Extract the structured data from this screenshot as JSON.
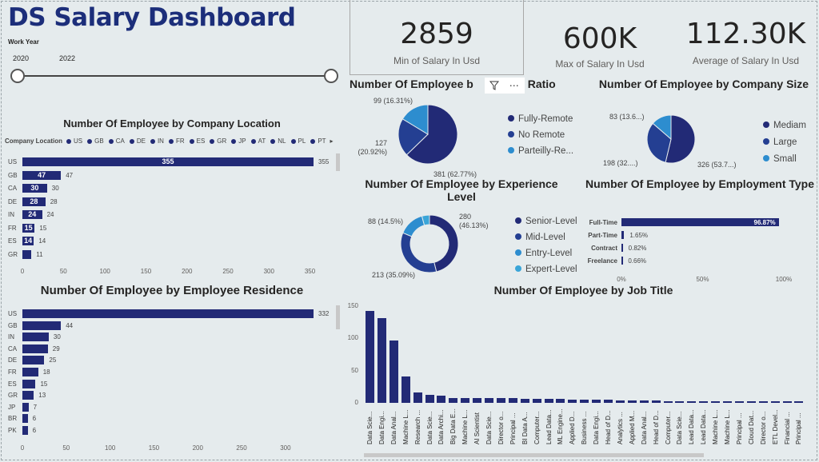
{
  "title": "DS Salary Dashboard",
  "slicer": {
    "label": "Work Year",
    "start": "2020",
    "end": "2022"
  },
  "cards": [
    {
      "value": "2859",
      "label": "Min of Salary In Usd"
    },
    {
      "value": "600K",
      "label": "Max of Salary In Usd"
    },
    {
      "value": "112.30K",
      "label": "Average of Salary In Usd"
    }
  ],
  "colors": {
    "dark": "#222a76",
    "mid": "#243f92",
    "light": "#2d8dcf",
    "lighter": "#3aa5d8"
  },
  "toolbar_icons": [
    "filter-icon",
    "more-options-icon"
  ],
  "location_chart": {
    "title": "Number Of Employee by Company Location",
    "legend_label": "Company Location",
    "legend_items": [
      "US",
      "GB",
      "CA",
      "DE",
      "IN",
      "FR",
      "ES",
      "GR",
      "JP",
      "AT",
      "NL",
      "PL",
      "PT"
    ],
    "legend_more": "▸",
    "categories": [
      "US",
      "GB",
      "CA",
      "DE",
      "IN",
      "FR",
      "ES",
      "GR"
    ],
    "values": [
      355,
      47,
      30,
      28,
      24,
      15,
      14,
      11
    ],
    "inside_labels": [
      "355",
      "47",
      "30",
      "28",
      "24",
      "15",
      "14",
      ""
    ],
    "outside_labels": [
      "355",
      "47",
      "30",
      "28",
      "24",
      "15",
      "14",
      "11"
    ],
    "ticks": [
      "0",
      "50",
      "100",
      "150",
      "200",
      "250",
      "300",
      "350"
    ],
    "tick_values": [
      0,
      50,
      100,
      150,
      200,
      250,
      300,
      350
    ],
    "xmax": 355
  },
  "residence_chart": {
    "title": "Number Of Employee by Employee Residence",
    "categories": [
      "US",
      "GB",
      "IN",
      "CA",
      "DE",
      "FR",
      "ES",
      "GR",
      "JP",
      "BR",
      "PK"
    ],
    "values": [
      332,
      44,
      30,
      29,
      25,
      18,
      15,
      13,
      7,
      6,
      6
    ],
    "labels": [
      "332",
      "44",
      "30",
      "29",
      "25",
      "18",
      "15",
      "13",
      "7",
      "6",
      "6"
    ],
    "ticks": [
      "0",
      "50",
      "100",
      "150",
      "200",
      "250",
      "300"
    ],
    "tick_values": [
      0,
      50,
      100,
      150,
      200,
      250,
      300
    ],
    "xmax": 332
  },
  "remote_chart": {
    "title_left": "Number Of Employee b",
    "title_right": "ote Ratio",
    "slices": [
      {
        "name": "Fully-Remote",
        "value": 381,
        "label": "381 (62.77%)"
      },
      {
        "name": "No Remote",
        "value": 127,
        "label": "127\n(20.92%)"
      },
      {
        "name": "Parteilly-Re...",
        "value": 99,
        "label": "99 (16.31%)"
      }
    ]
  },
  "size_chart": {
    "title": "Number Of Employee by Company Size",
    "slices": [
      {
        "name": "Mediam",
        "value": 326,
        "label": "326 (53.7...)"
      },
      {
        "name": "Large",
        "value": 198,
        "label": "198 (32....)"
      },
      {
        "name": "Small",
        "value": 83,
        "label": "83 (13.6...)"
      }
    ]
  },
  "experience_chart": {
    "title": "Number Of Employee by Experience Level",
    "slices": [
      {
        "name": "Senior-Level",
        "value": 280,
        "label": "280\n(46.13%)"
      },
      {
        "name": "Mid-Level",
        "value": 213,
        "label": "213 (35.09%)"
      },
      {
        "name": "Entry-Level",
        "value": 88,
        "label": "88 (14.5%)"
      },
      {
        "name": "Expert-Level",
        "value": 26,
        "label": ""
      }
    ]
  },
  "employment_chart": {
    "title": "Number Of Employee by Employment Type",
    "categories": [
      "Full-Time",
      "Part-Time",
      "Contract",
      "Freelance"
    ],
    "values": [
      96.87,
      1.65,
      0.82,
      0.66
    ],
    "labels": [
      "96.87%",
      "1.65%",
      "0.82%",
      "0.66%"
    ],
    "ticks": [
      "0%",
      "50%",
      "100%"
    ],
    "tick_values": [
      0,
      50,
      100
    ]
  },
  "jobtitle_chart": {
    "title": "Number Of Employee by Job Title",
    "categories": [
      "Data Scie...",
      "Data Engi...",
      "Data Anal...",
      "Machine L...",
      "Research ...",
      "Data Scie...",
      "Data Archi...",
      "Big Data E...",
      "Machine L...",
      "AI Scientist",
      "Data Scie...",
      "Director o...",
      "Principal ...",
      "BI Data A...",
      "Computer...",
      "Lead Data...",
      "ML Engine...",
      "Applied D...",
      "Business ...",
      "Data Engi...",
      "Head of D...",
      "Analytics ...",
      "Applied M...",
      "Data Anal...",
      "Head of D...",
      "Computer...",
      "Data Scie...",
      "Lead Data...",
      "Lead Data...",
      "Machine L...",
      "Machine L...",
      "Principal ...",
      "Cloud Dat...",
      "Director o...",
      "ETL Devel...",
      "Financial ...",
      "Principal ..."
    ],
    "values": [
      143,
      132,
      97,
      41,
      16,
      12,
      11,
      8,
      8,
      7,
      7,
      7,
      7,
      6,
      6,
      6,
      6,
      5,
      5,
      5,
      5,
      4,
      4,
      4,
      4,
      3,
      3,
      3,
      3,
      3,
      3,
      3,
      2,
      2,
      2,
      2,
      2
    ],
    "ticks": [
      "0",
      "50",
      "100",
      "150"
    ],
    "tick_values": [
      0,
      50,
      100,
      150
    ],
    "ymax": 150
  }
}
